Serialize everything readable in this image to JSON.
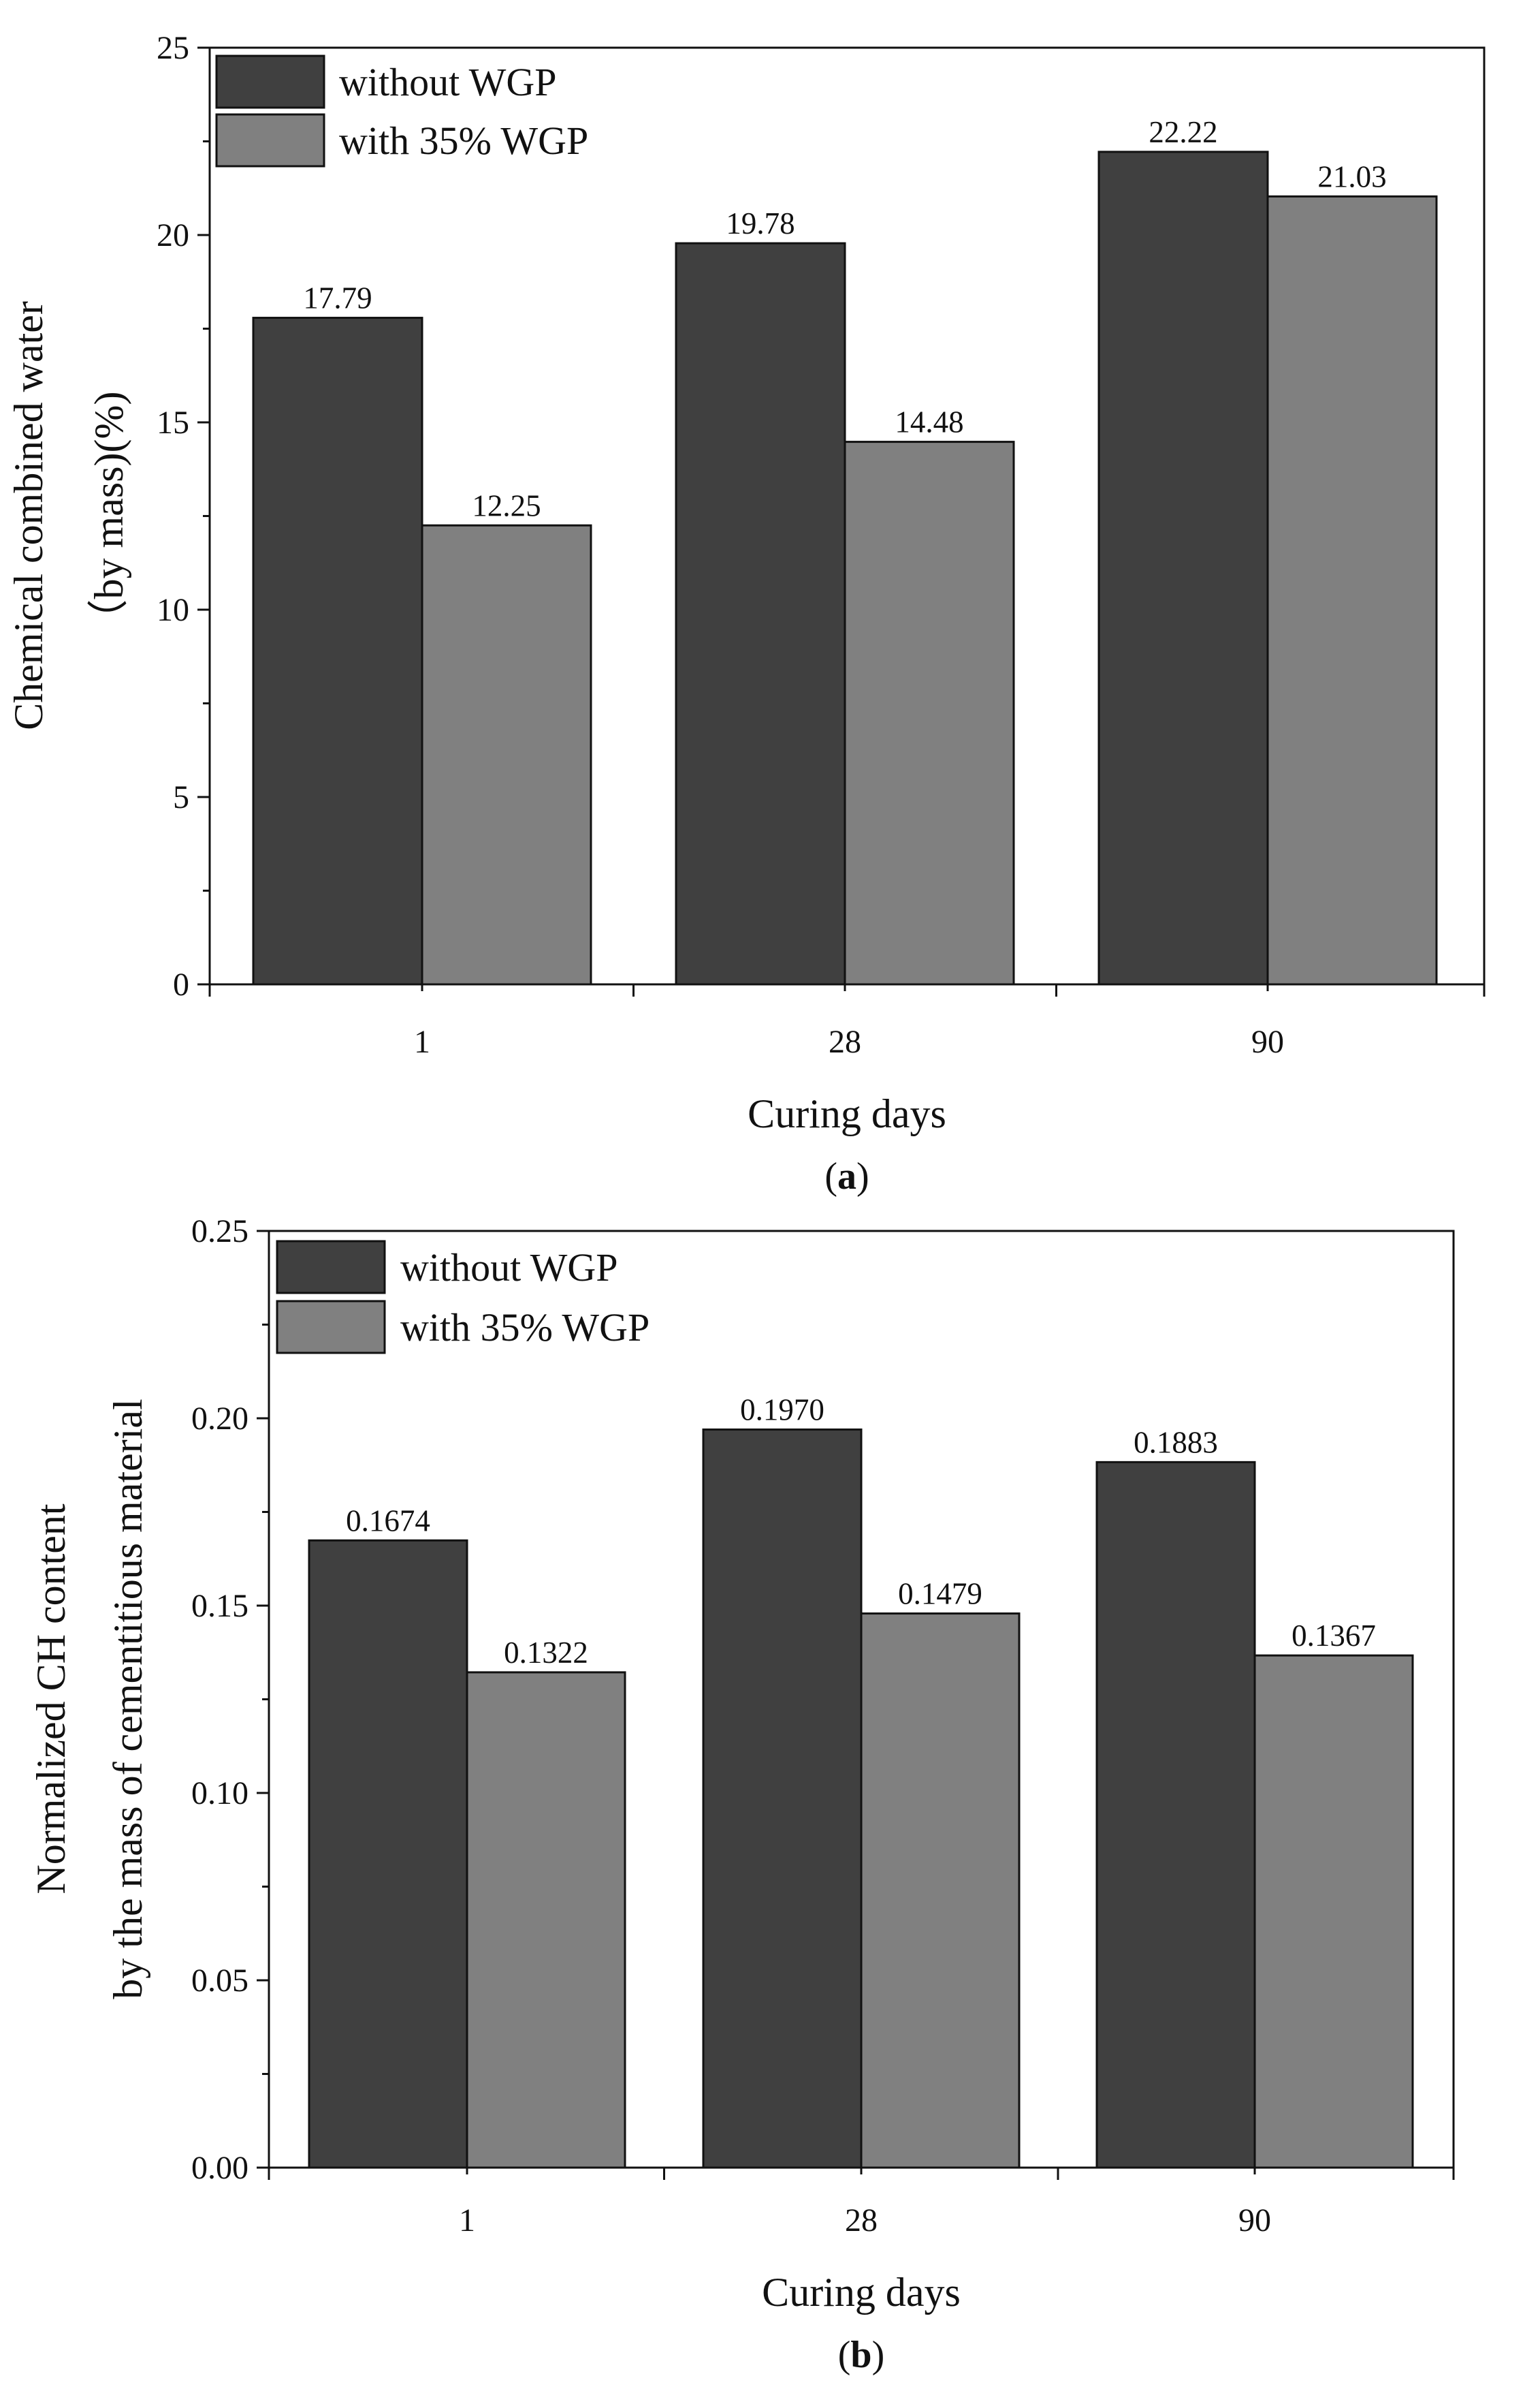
{
  "chart_data": [
    {
      "type": "bar",
      "caption": "a",
      "categories": [
        "1",
        "28",
        "90"
      ],
      "series": [
        {
          "name": "without WGP",
          "values": [
            17.79,
            19.78,
            22.22
          ],
          "labels": [
            "17.79",
            "19.78",
            "22.22"
          ]
        },
        {
          "name": "with 35% WGP",
          "values": [
            12.25,
            14.48,
            21.03
          ],
          "labels": [
            "12.25",
            "14.48",
            "21.03"
          ]
        }
      ],
      "xlabel": "Curing days",
      "ylabel_lines": [
        "Chemical combined water",
        "（by mass)(%)"
      ],
      "ylim": [
        0,
        25
      ],
      "yticks": [
        "0",
        "5",
        "10",
        "15",
        "20",
        "25"
      ],
      "legend_position": "top-left",
      "grid": false
    },
    {
      "type": "bar",
      "caption": "b",
      "categories": [
        "1",
        "28",
        "90"
      ],
      "series": [
        {
          "name": "without WGP",
          "values": [
            0.1674,
            0.197,
            0.1883
          ],
          "labels": [
            "0.1674",
            "0.1970",
            "0.1883"
          ]
        },
        {
          "name": "with 35% WGP",
          "values": [
            0.1322,
            0.1479,
            0.1367
          ],
          "labels": [
            "0.1322",
            "0.1479",
            "0.1367"
          ]
        }
      ],
      "xlabel": "Curing days",
      "ylabel_lines": [
        "Normalized CH content",
        "by the mass of cementitious  material"
      ],
      "ylim": [
        0,
        0.25
      ],
      "yticks": [
        "0.00",
        "0.05",
        "0.10",
        "0.15",
        "0.20",
        "0.25"
      ],
      "legend_position": "top-left",
      "grid": false
    }
  ],
  "colors": {
    "without WGP": "#404040",
    "with 35% WGP": "#808080",
    "axis": "#111111"
  }
}
